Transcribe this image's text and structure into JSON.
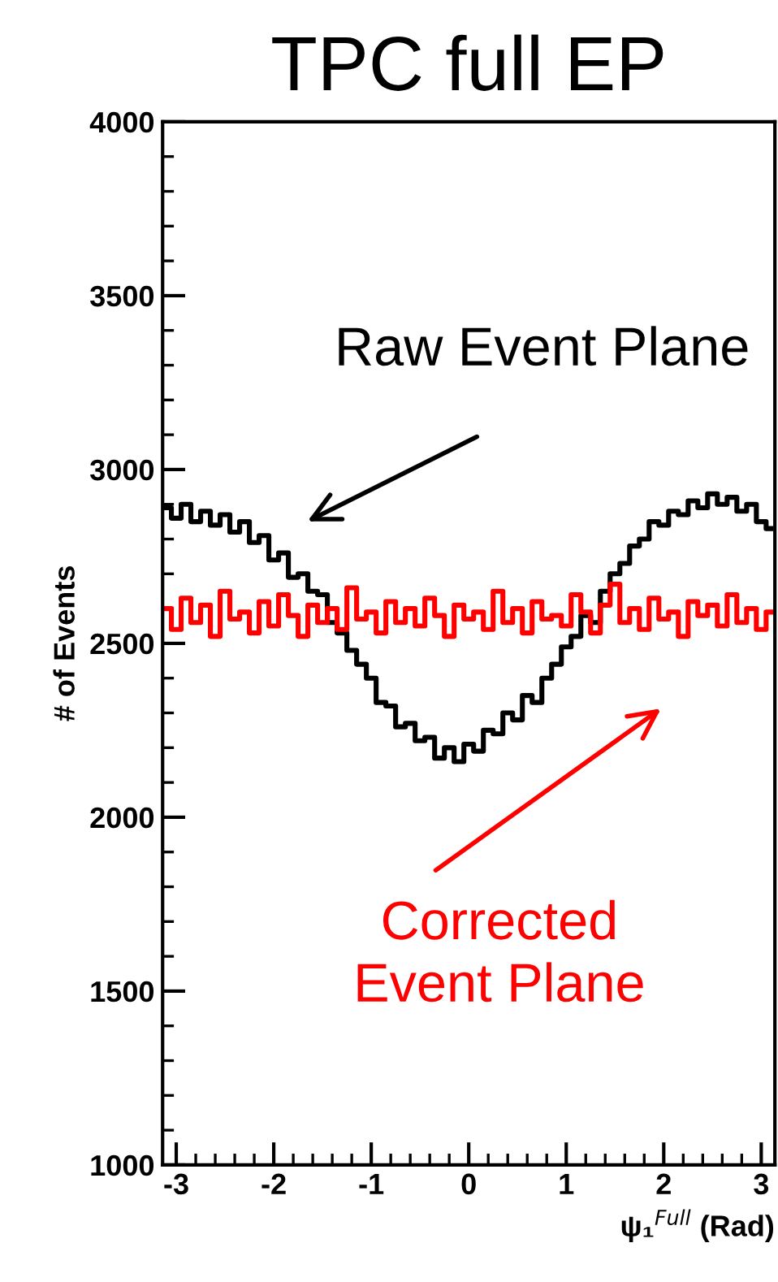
{
  "chart_data": {
    "type": "step",
    "title": "TPC full EP",
    "xlabel": "ψ₁$^{Full}$ (Rad)",
    "ylabel": "# of Events",
    "x": [
      -3.1,
      -3.0,
      -2.9,
      -2.8,
      -2.7,
      -2.6,
      -2.5,
      -2.4,
      -2.3,
      -2.2,
      -2.1,
      -2.0,
      -1.9,
      -1.8,
      -1.7,
      -1.6,
      -1.5,
      -1.4,
      -1.3,
      -1.2,
      -1.1,
      -1.0,
      -0.9,
      -0.8,
      -0.7,
      -0.6,
      -0.5,
      -0.4,
      -0.3,
      -0.2,
      -0.1,
      0.0,
      0.1,
      0.2,
      0.3,
      0.4,
      0.5,
      0.6,
      0.7,
      0.8,
      0.9,
      1.0,
      1.1,
      1.2,
      1.3,
      1.4,
      1.5,
      1.6,
      1.7,
      1.8,
      1.9,
      2.0,
      2.1,
      2.2,
      2.3,
      2.4,
      2.5,
      2.6,
      2.7,
      2.8,
      2.9,
      3.0,
      3.1
    ],
    "series": [
      {
        "color": "#000000",
        "values": [
          2890,
          2860,
          2900,
          2850,
          2880,
          2840,
          2870,
          2820,
          2850,
          2790,
          2810,
          2740,
          2760,
          2690,
          2700,
          2650,
          2640,
          2560,
          2530,
          2480,
          2440,
          2400,
          2330,
          2320,
          2260,
          2270,
          2220,
          2230,
          2170,
          2200,
          2160,
          2210,
          2190,
          2250,
          2240,
          2300,
          2280,
          2350,
          2330,
          2400,
          2440,
          2490,
          2520,
          2580,
          2560,
          2650,
          2700,
          2730,
          2780,
          2800,
          2850,
          2840,
          2880,
          2870,
          2910,
          2890,
          2930,
          2900,
          2920,
          2880,
          2900,
          2850,
          2830
        ]
      },
      {
        "color": "#ff0000",
        "values": [
          2600,
          2540,
          2630,
          2560,
          2610,
          2520,
          2650,
          2570,
          2590,
          2530,
          2620,
          2550,
          2640,
          2580,
          2520,
          2610,
          2560,
          2600,
          2540,
          2660,
          2570,
          2590,
          2530,
          2620,
          2560,
          2600,
          2550,
          2630,
          2580,
          2520,
          2610,
          2570,
          2590,
          2540,
          2650,
          2560,
          2600,
          2530,
          2620,
          2570,
          2580,
          2550,
          2640,
          2590,
          2530,
          2610,
          2670,
          2560,
          2600,
          2540,
          2630,
          2570,
          2590,
          2520,
          2620,
          2580,
          2610,
          2550,
          2640,
          2560,
          2600,
          2540,
          2590
        ]
      }
    ],
    "xlim": [
      -3.14,
      3.14
    ],
    "xticks": [
      -3,
      -2,
      -1,
      0,
      1,
      2,
      3
    ],
    "ylim": [
      1000,
      4000
    ],
    "yticks": [
      1000,
      1500,
      2000,
      2500,
      3000,
      3500,
      4000
    ],
    "grid": false,
    "legend": false,
    "annotations": [
      "Raw Event Plane",
      "Corrected\nEvent Plane"
    ]
  }
}
